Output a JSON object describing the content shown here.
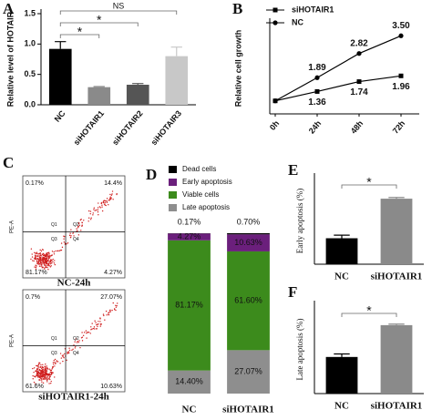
{
  "chart_data": [
    {
      "panel": "A",
      "type": "bar",
      "ylabel": "Relative level of HOTAIR",
      "categories": [
        "NC",
        "siHOTAIR1",
        "siHOTAIR2",
        "siHOTAIR3"
      ],
      "values": [
        0.92,
        0.29,
        0.33,
        0.8
      ],
      "errors": [
        0.12,
        0.01,
        0.02,
        0.15
      ],
      "colors": [
        "#000000",
        "#8a8a8a",
        "#555555",
        "#c8c8c8"
      ],
      "ylim": [
        0,
        1.5
      ],
      "yticks": [
        {
          "value": 0,
          "label": "0.0"
        },
        0.5,
        {
          "value": 1,
          "label": "1.0"
        },
        1.5
      ],
      "annotations": [
        "NS",
        "*",
        "*"
      ]
    },
    {
      "panel": "B",
      "type": "line",
      "ylabel": "Relative cell growth",
      "categories": [
        "0h",
        "24h",
        "48h",
        "72h"
      ],
      "ylim": [
        0.5,
        4
      ],
      "series": [
        {
          "name": "siHOTAIR1",
          "color": "#000000",
          "marker": "square",
          "values": [
            1,
            1.36,
            1.74,
            1.96
          ],
          "value_labels": [
            null,
            "1.36",
            "1.74",
            "1.96"
          ]
        },
        {
          "name": "NC",
          "color": "#000000",
          "marker": "circle",
          "values": [
            1,
            1.89,
            2.82,
            3.5
          ],
          "value_labels": [
            null,
            "1.89",
            "2.82",
            "3.50"
          ]
        }
      ]
    },
    {
      "panel": "C",
      "type": "flow",
      "ylabel": "PE-A",
      "gates": [
        "Q1",
        "Q2",
        "Q3",
        "Q4"
      ],
      "plots": [
        {
          "name": "NC-24h",
          "quadrants": [
            "0.17%",
            "14.4%",
            "81.17%",
            "4.27%"
          ]
        },
        {
          "name": "siHOTAIR1-24h",
          "quadrants": [
            "0.7%",
            "27.07%",
            "61.6%",
            "10.63%"
          ]
        }
      ]
    },
    {
      "panel": "D",
      "type": "stacked_bar",
      "categories": [
        "NC",
        "siHOTAIR1"
      ],
      "ylim": [
        0,
        100
      ],
      "series": [
        {
          "name": "Dead cells",
          "color": "#000000",
          "values": [
            0.17,
            0.7
          ],
          "value_labels": [
            "0.17%",
            "0.70%"
          ]
        },
        {
          "name": "Early apoptosis",
          "color": "#6b1f7c",
          "values": [
            4.27,
            10.63
          ],
          "value_labels": [
            "4.27%",
            "10.63%"
          ]
        },
        {
          "name": "Viable cells",
          "color": "#3c8b1c",
          "values": [
            81.17,
            61.6
          ],
          "value_labels": [
            "81.17%",
            "61.60%"
          ]
        },
        {
          "name": "Late apoptosis",
          "color": "#8e8e8e",
          "values": [
            14.4,
            27.07
          ],
          "value_labels": [
            "14.40%",
            "27.07%"
          ]
        }
      ]
    },
    {
      "panel": "E",
      "type": "bar",
      "ylabel": "Early apoptosis (%)",
      "categories": [
        "NC",
        "siHOTAIR1"
      ],
      "values": [
        4.2,
        10.6
      ],
      "errors": [
        0.5,
        0.2
      ],
      "colors": [
        "#000000",
        "#8a8a8a"
      ],
      "ylim": [
        0,
        14
      ],
      "annotations": [
        "*"
      ]
    },
    {
      "panel": "F",
      "type": "bar",
      "ylabel": "Late apoptosis (%)",
      "categories": [
        "NC",
        "siHOTAIR1"
      ],
      "values": [
        14.5,
        27.1
      ],
      "errors": [
        1.2,
        0.4
      ],
      "colors": [
        "#000000",
        "#8a8a8a"
      ],
      "ylim": [
        0,
        35
      ],
      "annotations": [
        "*"
      ]
    }
  ]
}
